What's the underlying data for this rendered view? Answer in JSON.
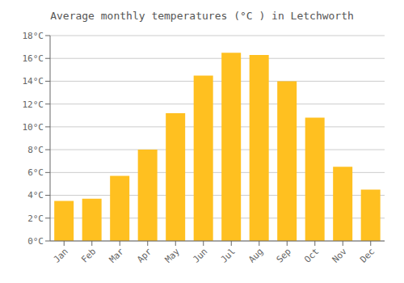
{
  "chart_data": {
    "type": "bar",
    "title": "Average monthly temperatures (°C ) in Letchworth",
    "categories": [
      "Jan",
      "Feb",
      "Mar",
      "Apr",
      "May",
      "Jun",
      "Jul",
      "Aug",
      "Sep",
      "Oct",
      "Nov",
      "Dec"
    ],
    "values": [
      3.5,
      3.7,
      5.7,
      8.0,
      11.2,
      14.5,
      16.5,
      16.3,
      14.0,
      10.8,
      6.5,
      4.5
    ],
    "color": "#FFC020",
    "ylim": [
      0,
      18
    ],
    "yticks": [
      {
        "value": 0,
        "label": "0°C"
      },
      {
        "value": 2,
        "label": "2°C"
      },
      {
        "value": 4,
        "label": "4°C"
      },
      {
        "value": 6,
        "label": "6°C"
      },
      {
        "value": 8,
        "label": "8°C"
      },
      {
        "value": 10,
        "label": "10°C"
      },
      {
        "value": 12,
        "label": "12°C"
      },
      {
        "value": 14,
        "label": "14°C"
      },
      {
        "value": 16,
        "label": "16°C"
      },
      {
        "value": 18,
        "label": "18°C"
      }
    ],
    "grid": true
  }
}
